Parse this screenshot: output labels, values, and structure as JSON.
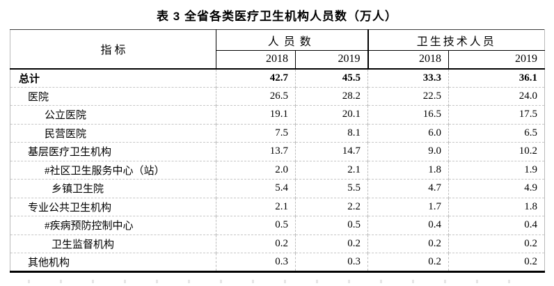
{
  "title": "表 3 全省各类医疗卫生机构人员数（万人）",
  "colors": {
    "text": "#000000",
    "header_line": "#000000",
    "grid_line": "#c6c6c6",
    "background": "#ffffff"
  },
  "table": {
    "indicator_header": "指 标",
    "groups": [
      {
        "label": "人员数",
        "years": [
          "2018",
          "2019"
        ]
      },
      {
        "label": "卫生技术人员",
        "years": [
          "2018",
          "2019"
        ]
      }
    ],
    "rows": [
      {
        "label": "总计",
        "indent": 0,
        "bold": true,
        "values": [
          "42.7",
          "45.5",
          "33.3",
          "36.1"
        ]
      },
      {
        "label": "医院",
        "indent": 1,
        "bold": false,
        "values": [
          "26.5",
          "28.2",
          "22.5",
          "24.0"
        ]
      },
      {
        "label": "公立医院",
        "indent": 2,
        "bold": false,
        "values": [
          "19.1",
          "20.1",
          "16.5",
          "17.5"
        ]
      },
      {
        "label": "民营医院",
        "indent": 2,
        "bold": false,
        "values": [
          "7.5",
          "8.1",
          "6.0",
          "6.5"
        ]
      },
      {
        "label": "基层医疗卫生机构",
        "indent": 1,
        "bold": false,
        "values": [
          "13.7",
          "14.7",
          "9.0",
          "10.2"
        ]
      },
      {
        "label": "#社区卫生服务中心（站）",
        "indent": 2,
        "bold": false,
        "values": [
          "2.0",
          "2.1",
          "1.8",
          "1.9"
        ]
      },
      {
        "label": "乡镇卫生院",
        "indent": 3,
        "bold": false,
        "values": [
          "5.4",
          "5.5",
          "4.7",
          "4.9"
        ]
      },
      {
        "label": "专业公共卫生机构",
        "indent": 1,
        "bold": false,
        "values": [
          "2.1",
          "2.2",
          "1.7",
          "1.8"
        ]
      },
      {
        "label": "#疾病预防控制中心",
        "indent": 2,
        "bold": false,
        "values": [
          "0.5",
          "0.5",
          "0.4",
          "0.4"
        ]
      },
      {
        "label": "卫生监督机构",
        "indent": 3,
        "bold": false,
        "values": [
          "0.2",
          "0.2",
          "0.2",
          "0.2"
        ]
      },
      {
        "label": "其他机构",
        "indent": 1,
        "bold": false,
        "values": [
          "0.3",
          "0.3",
          "0.2",
          "0.2"
        ]
      }
    ]
  }
}
